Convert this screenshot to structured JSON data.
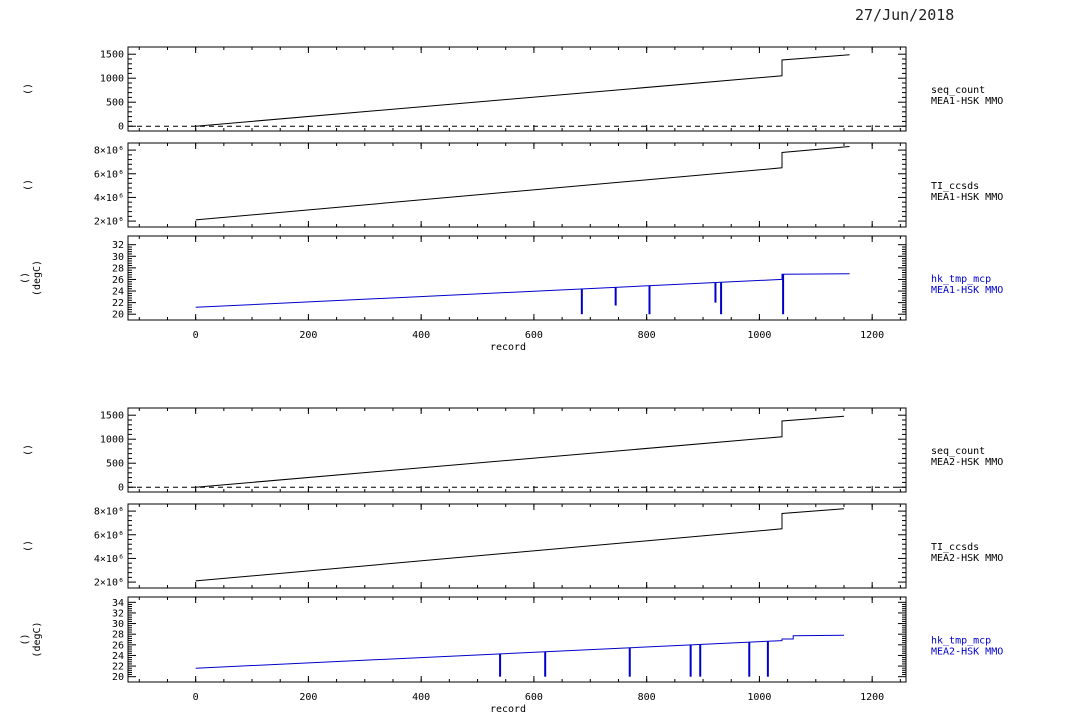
{
  "date": "27/Jun/2018",
  "colors": {
    "black": "#000000",
    "blue": "#0000cc"
  },
  "x_tick_labels": [
    "0",
    "200",
    "400",
    "600",
    "800",
    "1000",
    "1200"
  ],
  "x_axis_label": "record",
  "chart_data": [
    {
      "type": "line",
      "group": "MEA1",
      "ylabel": "()",
      "legend": [
        "seq_count",
        "MEA1-HSK MMO"
      ],
      "color": "#000000",
      "xlim": [
        -120,
        1260
      ],
      "ylim": [
        -100,
        1650
      ],
      "y_ticks": [
        0,
        500,
        1000,
        1500
      ],
      "y_tick_labels": [
        "0",
        "500",
        "1000",
        "1500"
      ],
      "zero_line": true,
      "x": [
        0,
        1040,
        1040,
        1160
      ],
      "values": [
        0,
        1050,
        1380,
        1490
      ]
    },
    {
      "type": "line",
      "group": "MEA1",
      "ylabel": "()",
      "legend": [
        "TI_ccsds",
        "MEA1-HSK MMO"
      ],
      "color": "#000000",
      "xlim": [
        -120,
        1260
      ],
      "ylim": [
        1500000,
        8600000
      ],
      "y_ticks": [
        2000000,
        4000000,
        6000000,
        8000000
      ],
      "y_tick_labels": [
        "2×10⁶",
        "4×10⁶",
        "6×10⁶",
        "8×10⁶"
      ],
      "x": [
        0,
        1040,
        1040,
        1160
      ],
      "values": [
        2100000,
        6500000,
        7800000,
        8300000
      ]
    },
    {
      "type": "line",
      "group": "MEA1",
      "ylabel": "()",
      "ylabel2": "(degC)",
      "legend": [
        "hk_tmp_mcp",
        "MEA1-HSK MMO"
      ],
      "color": "#0000cc",
      "xlim": [
        -120,
        1260
      ],
      "ylim": [
        19,
        33.5
      ],
      "y_ticks": [
        20,
        22,
        24,
        26,
        28,
        30,
        32
      ],
      "y_tick_labels": [
        "20",
        "22",
        "24",
        "26",
        "28",
        "30",
        "32"
      ],
      "x": [
        0,
        1040,
        1040,
        1160
      ],
      "values": [
        21.2,
        26.0,
        26.9,
        27.0
      ],
      "dips": [
        [
          685,
          20
        ],
        [
          745,
          21.5
        ],
        [
          805,
          20
        ],
        [
          922,
          22
        ],
        [
          932,
          20
        ],
        [
          1042,
          20
        ]
      ]
    },
    {
      "type": "line",
      "group": "MEA2",
      "ylabel": "()",
      "legend": [
        "seq_count",
        "MEA2-HSK MMO"
      ],
      "color": "#000000",
      "xlim": [
        -120,
        1260
      ],
      "ylim": [
        -100,
        1650
      ],
      "y_ticks": [
        0,
        500,
        1000,
        1500
      ],
      "y_tick_labels": [
        "0",
        "500",
        "1000",
        "1500"
      ],
      "zero_line": true,
      "x": [
        0,
        1040,
        1040,
        1150
      ],
      "values": [
        0,
        1050,
        1380,
        1480
      ]
    },
    {
      "type": "line",
      "group": "MEA2",
      "ylabel": "()",
      "legend": [
        "TI_ccsds",
        "MEA2-HSK MMO"
      ],
      "color": "#000000",
      "xlim": [
        -120,
        1260
      ],
      "ylim": [
        1500000,
        8600000
      ],
      "y_ticks": [
        2000000,
        4000000,
        6000000,
        8000000
      ],
      "y_tick_labels": [
        "2×10⁶",
        "4×10⁶",
        "6×10⁶",
        "8×10⁶"
      ],
      "x": [
        0,
        1040,
        1040,
        1150
      ],
      "values": [
        2100000,
        6500000,
        7800000,
        8200000
      ]
    },
    {
      "type": "line",
      "group": "MEA2",
      "ylabel": "()",
      "ylabel2": "(degC)",
      "legend": [
        "hk_tmp_mcp",
        "MEA2-HSK MMO"
      ],
      "color": "#0000cc",
      "xlim": [
        -120,
        1260
      ],
      "ylim": [
        19,
        35
      ],
      "y_ticks": [
        20,
        22,
        24,
        26,
        28,
        30,
        32,
        34
      ],
      "y_tick_labels": [
        "20",
        "22",
        "24",
        "26",
        "28",
        "30",
        "32",
        "34"
      ],
      "x": [
        0,
        1040,
        1040,
        1060,
        1060,
        1150
      ],
      "values": [
        21.6,
        26.8,
        27.1,
        27.1,
        27.7,
        27.8
      ],
      "dips": [
        [
          540,
          20
        ],
        [
          620,
          20
        ],
        [
          770,
          20
        ],
        [
          878,
          20
        ],
        [
          895,
          20
        ],
        [
          982,
          20
        ],
        [
          1015,
          20
        ]
      ]
    }
  ]
}
